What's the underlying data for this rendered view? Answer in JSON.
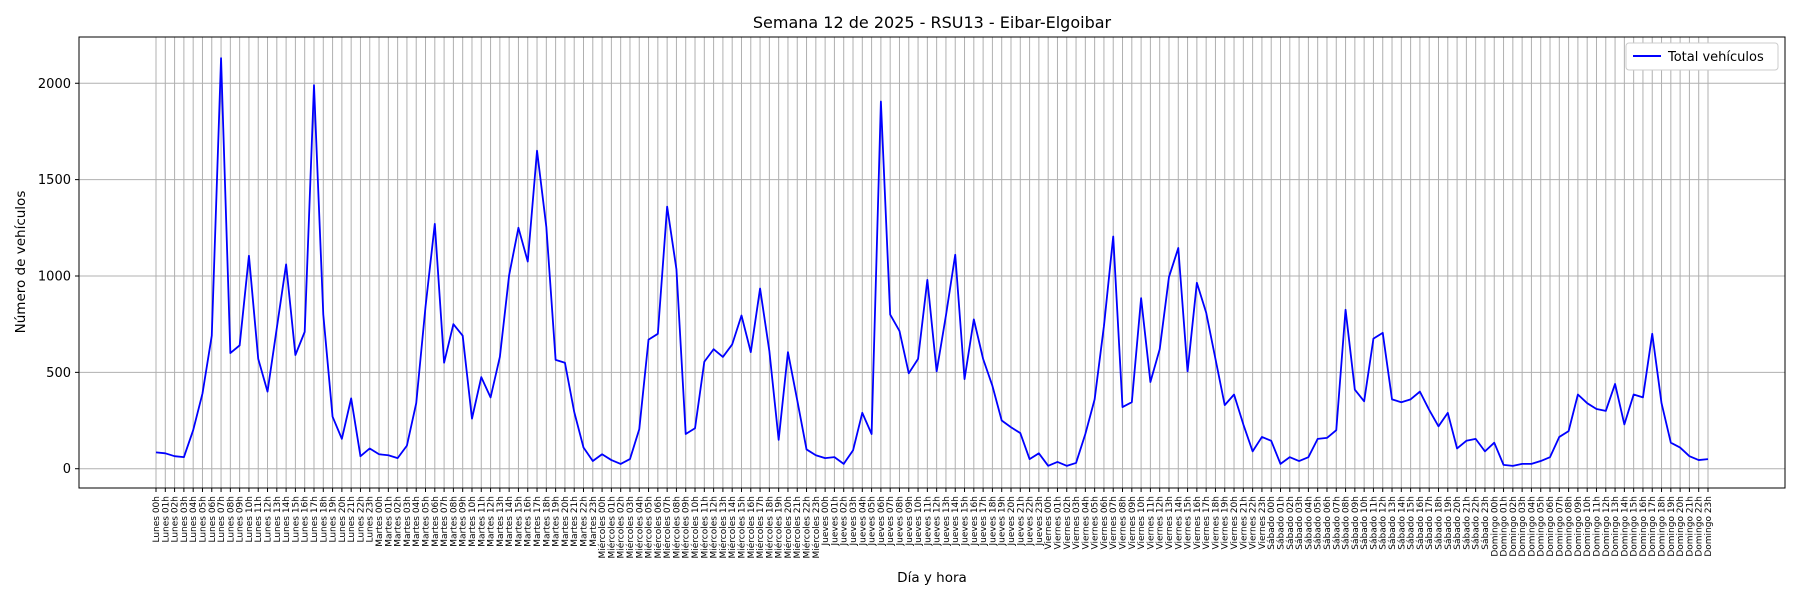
{
  "chart_data": {
    "type": "line",
    "title": "Semana 12 de 2025 - RSU13 - Eibar-Elgoibar",
    "xlabel": "Día y hora",
    "ylabel": "Número de vehículos",
    "ylim": [
      -100,
      2240
    ],
    "yticks": [
      0,
      500,
      1000,
      1500,
      2000
    ],
    "grid": true,
    "legend_position": "top-right",
    "days": [
      "Lunes",
      "Martes",
      "Miércoles",
      "Jueves",
      "Viernes",
      "Sábado",
      "Domingo"
    ],
    "series": [
      {
        "name": "Total vehículos",
        "color": "#0000ff",
        "values": [
          85,
          80,
          65,
          60,
          200,
          390,
          690,
          2130,
          600,
          640,
          1105,
          570,
          400,
          730,
          1060,
          590,
          710,
          1990,
          800,
          270,
          155,
          365,
          65,
          105,
          75,
          70,
          55,
          120,
          340,
          840,
          1270,
          550,
          750,
          690,
          260,
          475,
          370,
          580,
          1005,
          1250,
          1075,
          1650,
          1255,
          565,
          550,
          295,
          110,
          40,
          75,
          45,
          25,
          50,
          205,
          670,
          700,
          1360,
          1035,
          180,
          210,
          555,
          620,
          580,
          645,
          795,
          605,
          935,
          610,
          150,
          605,
          355,
          100,
          70,
          55,
          60,
          25,
          95,
          290,
          180,
          1905,
          800,
          715,
          495,
          570,
          980,
          505,
          795,
          1110,
          465,
          775,
          570,
          430,
          250,
          215,
          185,
          50,
          80,
          15,
          35,
          15,
          30,
          180,
          360,
          740,
          1205,
          320,
          345,
          885,
          450,
          620,
          995,
          1145,
          505,
          965,
          810,
          570,
          330,
          385,
          230,
          90,
          165,
          145,
          25,
          60,
          40,
          60,
          155,
          160,
          200,
          825,
          410,
          350,
          675,
          705,
          360,
          345,
          360,
          400,
          305,
          220,
          290,
          105,
          145,
          155,
          90,
          135,
          20,
          15,
          25,
          25,
          40,
          60,
          165,
          195,
          385,
          340,
          310,
          300,
          440,
          230,
          385,
          370,
          700,
          340,
          135,
          110,
          65,
          45,
          50
        ]
      }
    ]
  }
}
